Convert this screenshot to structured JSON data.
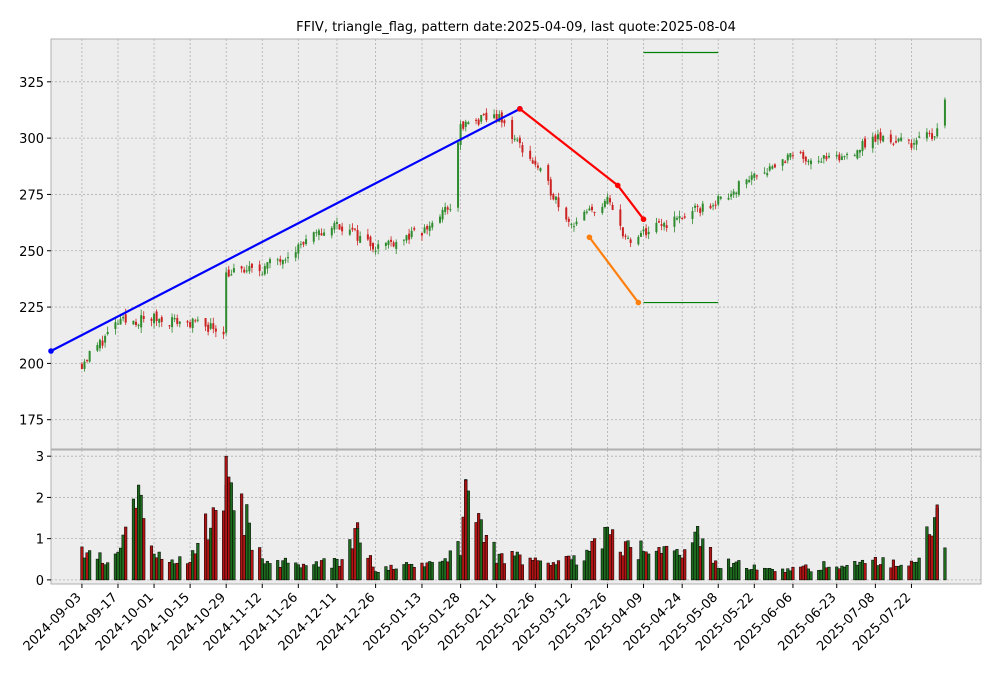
{
  "chart_data": {
    "type": "candlestick",
    "title": "FFIV, triangle_flag, pattern date:2025-04-09, last quote:2025-08-04",
    "price_panel": {
      "ylim": [
        162,
        344
      ],
      "yticks": [
        175,
        200,
        225,
        250,
        275,
        300,
        325
      ],
      "grid": true
    },
    "volume_panel": {
      "ylim": [
        -0.1,
        3.15
      ],
      "yticks": [
        0,
        1,
        2,
        3
      ],
      "grid": true
    },
    "xlim": [
      "2024-08-22",
      "2025-08-18"
    ],
    "x_tick_labels": [
      "2024-09-03",
      "2024-09-17",
      "2024-10-01",
      "2024-10-15",
      "2024-10-29",
      "2024-11-12",
      "2024-11-26",
      "2024-12-11",
      "2024-12-26",
      "2025-01-13",
      "2025-01-28",
      "2025-02-11",
      "2025-02-26",
      "2025-03-12",
      "2025-03-26",
      "2025-04-09",
      "2025-04-24",
      "2025-05-08",
      "2025-05-22",
      "2025-06-06",
      "2025-06-23",
      "2025-07-08",
      "2025-07-22"
    ],
    "price_series": {
      "up_color": "#2e8b2e",
      "down_color": "#cc2222",
      "dates": [
        "2024-09-03",
        "2024-09-17",
        "2024-10-01",
        "2024-10-15",
        "2024-10-28",
        "2024-10-29",
        "2024-11-12",
        "2024-11-26",
        "2024-12-11",
        "2024-12-26",
        "2025-01-13",
        "2025-01-24",
        "2025-01-28",
        "2025-02-11",
        "2025-02-26",
        "2025-03-12",
        "2025-03-26",
        "2025-04-04",
        "2025-04-09",
        "2025-04-24",
        "2025-05-08",
        "2025-05-22",
        "2025-06-06",
        "2025-06-23",
        "2025-07-08",
        "2025-07-22",
        "2025-07-31",
        "2025-08-04"
      ],
      "close": [
        200,
        218,
        220,
        218,
        215,
        240,
        242,
        252,
        262,
        252,
        258,
        270,
        305,
        310,
        288,
        262,
        272,
        252,
        258,
        265,
        272,
        284,
        292,
        290,
        300,
        298,
        302,
        318
      ]
    },
    "volume_series": {
      "unit": "relative",
      "up_color": "#1e6a1e",
      "down_color": "#b01515",
      "dates": [
        "2024-09-03",
        "2024-09-17",
        "2024-09-25",
        "2024-10-01",
        "2024-10-15",
        "2024-10-29",
        "2024-11-12",
        "2024-11-26",
        "2024-12-11",
        "2024-12-19",
        "2024-12-26",
        "2025-01-13",
        "2025-01-28",
        "2025-01-30",
        "2025-02-11",
        "2025-02-26",
        "2025-03-12",
        "2025-03-26",
        "2025-04-07",
        "2025-04-09",
        "2025-04-24",
        "2025-04-30",
        "2025-05-08",
        "2025-05-22",
        "2025-06-06",
        "2025-06-23",
        "2025-07-08",
        "2025-07-22",
        "2025-08-01",
        "2025-08-04"
      ],
      "values": [
        0.75,
        0.6,
        2.3,
        0.65,
        0.5,
        3.0,
        0.6,
        0.4,
        0.5,
        1.25,
        0.25,
        0.45,
        0.9,
        2.42,
        0.7,
        0.5,
        0.55,
        1.28,
        0.7,
        1.08,
        0.6,
        1.3,
        0.5,
        0.35,
        0.3,
        0.45,
        0.5,
        0.45,
        1.82,
        0.82
      ]
    },
    "overlay_lines": [
      {
        "color": "#0000ff",
        "points": [
          [
            "2024-08-22",
            205.5
          ],
          [
            "2025-02-20",
            313
          ]
        ]
      },
      {
        "color": "#ff0000",
        "points": [
          [
            "2025-02-20",
            313
          ],
          [
            "2025-03-30",
            279
          ],
          [
            "2025-04-09",
            264
          ]
        ]
      },
      {
        "color": "#ff7f0e",
        "points": [
          [
            "2025-03-19",
            256
          ],
          [
            "2025-04-07",
            227
          ]
        ]
      },
      {
        "color": "#008000",
        "points": [
          [
            "2025-04-09",
            338
          ],
          [
            "2025-05-08",
            338
          ]
        ]
      },
      {
        "color": "#008000",
        "points": [
          [
            "2025-04-09",
            227
          ],
          [
            "2025-05-08",
            227
          ]
        ]
      }
    ]
  }
}
